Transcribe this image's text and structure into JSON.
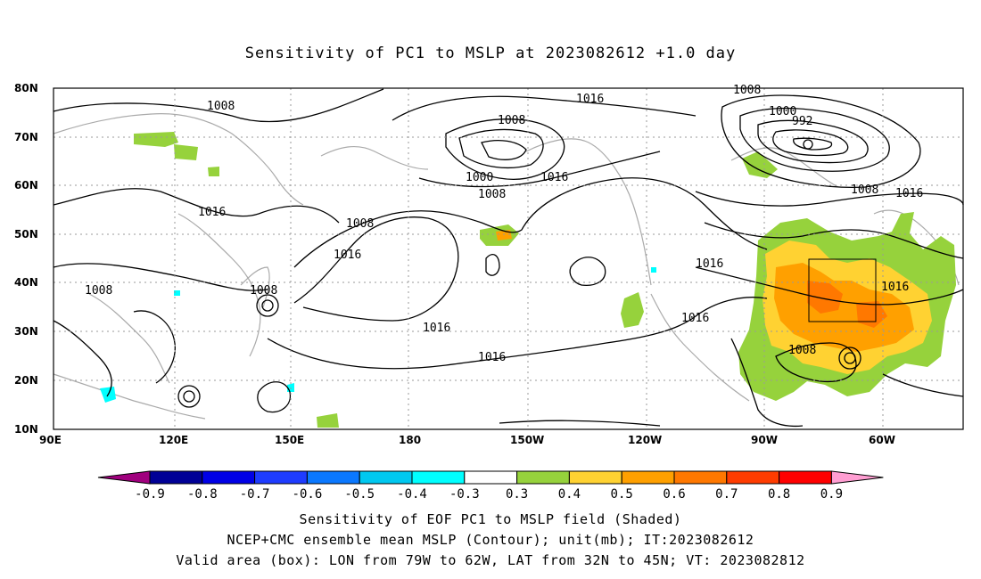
{
  "title": "Sensitivity of PC1 to MSLP at 2023082612 +1.0 day",
  "lat_ticks": [
    "80N",
    "70N",
    "60N",
    "50N",
    "40N",
    "30N",
    "20N",
    "10N"
  ],
  "lon_ticks": [
    "90E",
    "120E",
    "150E",
    "180",
    "150W",
    "120W",
    "90W",
    "60W"
  ],
  "contour_labels": [
    "1008",
    "1016",
    "1008",
    "1016",
    "1000",
    "992",
    "1008",
    "1016",
    "1008",
    "1000",
    "1008",
    "1016",
    "1008",
    "1016",
    "1016",
    "1008",
    "1016",
    "1016",
    "1008",
    "1016",
    "1016",
    "1008"
  ],
  "colorbar": {
    "labels": [
      "-0.9",
      "-0.8",
      "-0.7",
      "-0.6",
      "-0.5",
      "-0.4",
      "-0.3",
      "0.3",
      "0.4",
      "0.5",
      "0.6",
      "0.7",
      "0.8",
      "0.9"
    ],
    "colors": [
      "#a0007e",
      "#000096",
      "#0000e6",
      "#1e3cff",
      "#0a78ff",
      "#00c8f0",
      "#00ffff",
      "#ffffff",
      "#96d23c",
      "#ffd232",
      "#ffa000",
      "#ff7800",
      "#ff3c00",
      "#ff0000",
      "#ff9ed2"
    ]
  },
  "captions": {
    "line1": "Sensitivity of EOF PC1 to MSLP field (Shaded)",
    "line2": "NCEP+CMC ensemble mean MSLP (Contour); unit(mb); IT:2023082612",
    "line3": "Valid area (box): LON from 79W to 62W, LAT from 32N to 45N; VT: 2023082812"
  },
  "colors": {
    "positive": "#96d23c",
    "orange": "#ffa000",
    "yellow": "#ffd232"
  }
}
